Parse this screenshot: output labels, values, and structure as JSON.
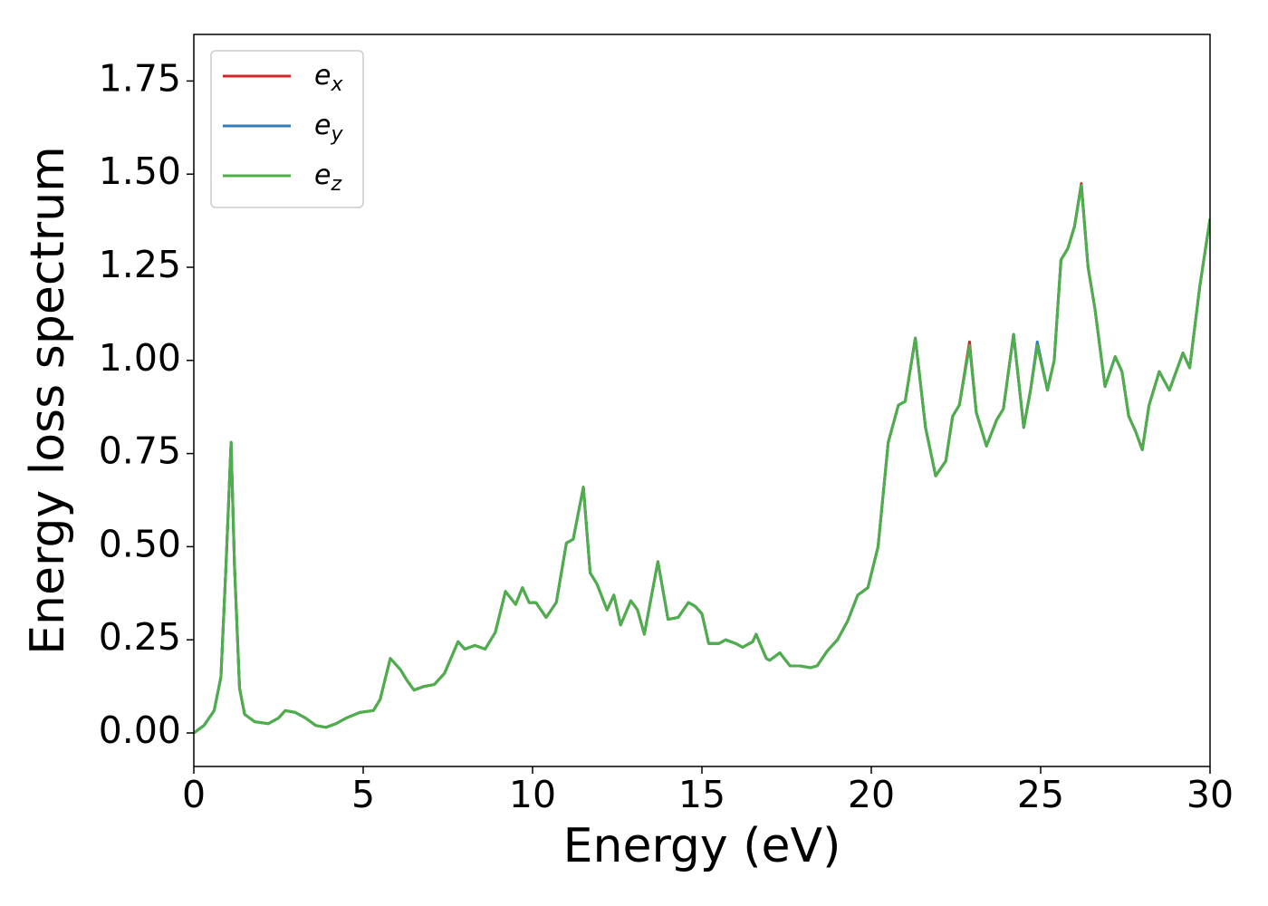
{
  "chart_data": {
    "type": "line",
    "xlabel": "Energy (eV)",
    "ylabel": "Energy loss spectrum",
    "x": [
      0,
      0.3,
      0.6,
      0.8,
      0.95,
      1.1,
      1.2,
      1.35,
      1.5,
      1.8,
      2.2,
      2.5,
      2.7,
      3.0,
      3.3,
      3.6,
      3.9,
      4.2,
      4.5,
      4.9,
      5.3,
      5.5,
      5.8,
      6.1,
      6.3,
      6.5,
      6.8,
      7.1,
      7.4,
      7.8,
      8.0,
      8.3,
      8.6,
      8.9,
      9.2,
      9.5,
      9.7,
      9.9,
      10.1,
      10.4,
      10.7,
      11.0,
      11.2,
      11.5,
      11.7,
      11.9,
      12.2,
      12.4,
      12.6,
      12.9,
      13.1,
      13.3,
      13.7,
      14.0,
      14.3,
      14.6,
      14.8,
      15.0,
      15.2,
      15.5,
      15.7,
      16.0,
      16.2,
      16.5,
      16.6,
      16.9,
      17.0,
      17.3,
      17.6,
      17.9,
      18.2,
      18.4,
      18.7,
      19.0,
      19.3,
      19.6,
      19.9,
      20.2,
      20.5,
      20.8,
      21.0,
      21.3,
      21.6,
      21.9,
      22.2,
      22.4,
      22.6,
      22.9,
      23.1,
      23.4,
      23.7,
      23.9,
      24.2,
      24.5,
      24.7,
      24.9,
      25.2,
      25.4,
      25.6,
      25.8,
      26.0,
      26.2,
      26.4,
      26.6,
      26.9,
      27.2,
      27.4,
      27.6,
      27.8,
      28.0,
      28.2,
      28.5,
      28.8,
      29.2,
      29.4,
      29.7,
      30.0
    ],
    "series": [
      {
        "name": "e",
        "subscript": "x",
        "color": "#d62728",
        "values": [
          0,
          0.02,
          0.06,
          0.15,
          0.45,
          0.78,
          0.45,
          0.12,
          0.05,
          0.03,
          0.025,
          0.04,
          0.06,
          0.055,
          0.04,
          0.02,
          0.015,
          0.025,
          0.04,
          0.055,
          0.06,
          0.09,
          0.2,
          0.17,
          0.14,
          0.115,
          0.125,
          0.13,
          0.16,
          0.245,
          0.225,
          0.235,
          0.225,
          0.27,
          0.38,
          0.345,
          0.39,
          0.35,
          0.35,
          0.31,
          0.35,
          0.51,
          0.52,
          0.66,
          0.43,
          0.4,
          0.33,
          0.37,
          0.29,
          0.355,
          0.33,
          0.265,
          0.46,
          0.305,
          0.31,
          0.35,
          0.34,
          0.32,
          0.24,
          0.24,
          0.25,
          0.24,
          0.23,
          0.245,
          0.265,
          0.2,
          0.195,
          0.215,
          0.18,
          0.18,
          0.175,
          0.18,
          0.22,
          0.25,
          0.3,
          0.37,
          0.39,
          0.5,
          0.78,
          0.88,
          0.89,
          1.06,
          0.82,
          0.69,
          0.73,
          0.85,
          0.88,
          1.05,
          0.86,
          0.77,
          0.84,
          0.87,
          1.07,
          0.82,
          0.92,
          1.04,
          0.92,
          1.0,
          1.27,
          1.3,
          1.36,
          1.475,
          1.25,
          1.14,
          0.93,
          1.01,
          0.97,
          0.85,
          0.81,
          0.76,
          0.88,
          0.97,
          0.92,
          1.02,
          0.98,
          1.2,
          1.38
        ]
      },
      {
        "name": "e",
        "subscript": "y",
        "color": "#377eb8",
        "values": [
          0,
          0.02,
          0.06,
          0.15,
          0.45,
          0.78,
          0.45,
          0.12,
          0.05,
          0.03,
          0.025,
          0.04,
          0.06,
          0.055,
          0.04,
          0.02,
          0.015,
          0.025,
          0.04,
          0.055,
          0.06,
          0.09,
          0.2,
          0.17,
          0.14,
          0.115,
          0.125,
          0.13,
          0.16,
          0.245,
          0.225,
          0.235,
          0.225,
          0.27,
          0.38,
          0.345,
          0.39,
          0.35,
          0.35,
          0.31,
          0.35,
          0.51,
          0.52,
          0.66,
          0.43,
          0.4,
          0.33,
          0.37,
          0.29,
          0.355,
          0.33,
          0.265,
          0.46,
          0.305,
          0.31,
          0.35,
          0.34,
          0.32,
          0.24,
          0.24,
          0.25,
          0.24,
          0.23,
          0.245,
          0.265,
          0.2,
          0.195,
          0.215,
          0.18,
          0.18,
          0.175,
          0.18,
          0.22,
          0.25,
          0.3,
          0.37,
          0.39,
          0.5,
          0.78,
          0.88,
          0.89,
          1.06,
          0.82,
          0.69,
          0.73,
          0.85,
          0.88,
          1.04,
          0.86,
          0.77,
          0.84,
          0.87,
          1.07,
          0.82,
          0.92,
          1.05,
          0.92,
          1.0,
          1.27,
          1.3,
          1.36,
          1.47,
          1.25,
          1.14,
          0.93,
          1.01,
          0.97,
          0.85,
          0.81,
          0.76,
          0.88,
          0.97,
          0.92,
          1.02,
          0.98,
          1.2,
          1.38
        ]
      },
      {
        "name": "e",
        "subscript": "z",
        "color": "#4daf4a",
        "values": [
          0,
          0.02,
          0.06,
          0.15,
          0.45,
          0.78,
          0.45,
          0.12,
          0.05,
          0.03,
          0.025,
          0.04,
          0.06,
          0.055,
          0.04,
          0.02,
          0.015,
          0.025,
          0.04,
          0.055,
          0.06,
          0.09,
          0.2,
          0.17,
          0.14,
          0.115,
          0.125,
          0.13,
          0.16,
          0.245,
          0.225,
          0.235,
          0.225,
          0.27,
          0.38,
          0.345,
          0.39,
          0.35,
          0.35,
          0.31,
          0.35,
          0.51,
          0.52,
          0.66,
          0.43,
          0.4,
          0.33,
          0.37,
          0.29,
          0.355,
          0.33,
          0.265,
          0.46,
          0.305,
          0.31,
          0.35,
          0.34,
          0.32,
          0.24,
          0.24,
          0.25,
          0.24,
          0.23,
          0.245,
          0.265,
          0.2,
          0.195,
          0.215,
          0.18,
          0.18,
          0.175,
          0.18,
          0.22,
          0.25,
          0.3,
          0.37,
          0.39,
          0.5,
          0.78,
          0.88,
          0.89,
          1.06,
          0.82,
          0.69,
          0.73,
          0.85,
          0.88,
          1.04,
          0.86,
          0.77,
          0.84,
          0.87,
          1.07,
          0.82,
          0.92,
          1.04,
          0.92,
          1.0,
          1.27,
          1.3,
          1.36,
          1.47,
          1.25,
          1.14,
          0.93,
          1.01,
          0.97,
          0.85,
          0.81,
          0.76,
          0.88,
          0.97,
          0.92,
          1.02,
          0.98,
          1.2,
          1.38
        ]
      }
    ],
    "xlim": [
      0,
      30
    ],
    "xticks": [
      0,
      5,
      10,
      15,
      20,
      25,
      30
    ],
    "ylim": [
      -0.09,
      1.875
    ],
    "yticks": [
      {
        "value": 0,
        "label": "0.00"
      },
      0.25,
      {
        "value": 0.5,
        "label": "0.50"
      },
      0.75,
      {
        "value": 1,
        "label": "1.00"
      },
      1.25,
      {
        "value": 1.5,
        "label": "1.50"
      },
      1.75
    ],
    "grid": false,
    "legend": "upper left"
  }
}
